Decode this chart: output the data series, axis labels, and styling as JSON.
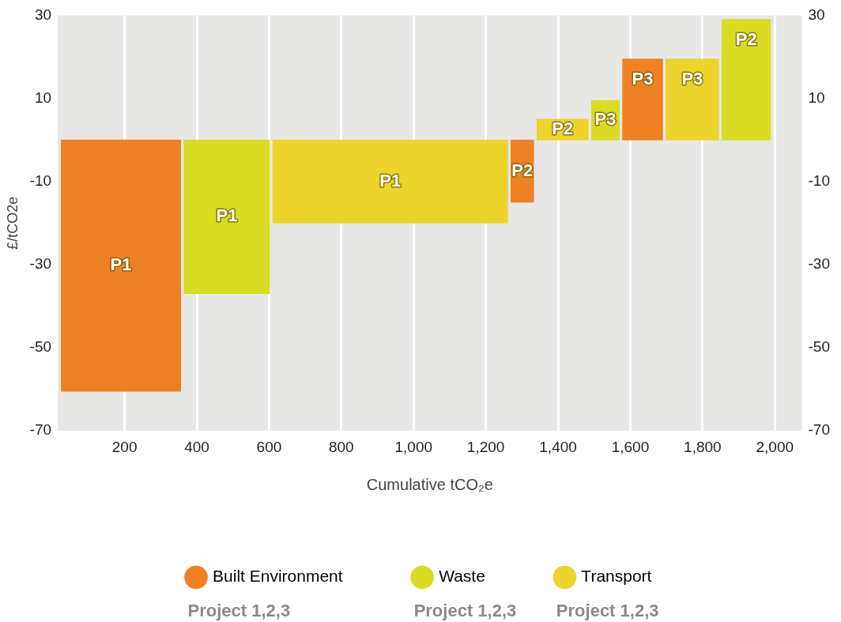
{
  "chart_data": {
    "type": "histogram",
    "xlabel": "Cumulative tCO₂e",
    "ylabel": "£/tCO2e",
    "bins": [
      20,
      360,
      606,
      1265,
      1337,
      1488,
      1574,
      1694,
      1849,
      1993
    ],
    "series": [
      {
        "name": "Built Environment",
        "color": "#ef8125",
        "values": [
          -60.5,
          null,
          null,
          -15,
          null,
          null,
          19.5,
          null,
          null
        ],
        "value_labels": [
          "P1",
          null,
          null,
          "P2",
          null,
          null,
          "P3",
          null,
          null
        ]
      },
      {
        "name": "Waste",
        "color": "#d9dc23",
        "values": [
          null,
          -37,
          null,
          null,
          null,
          9.5,
          null,
          null,
          29
        ],
        "value_labels": [
          null,
          "P1",
          null,
          null,
          null,
          "P3",
          null,
          null,
          "P2"
        ]
      },
      {
        "name": "Transport",
        "color": "#ecd42c",
        "values": [
          null,
          null,
          -20,
          null,
          5,
          null,
          null,
          19.5,
          null
        ],
        "value_labels": [
          null,
          null,
          "P1",
          null,
          "P2",
          null,
          null,
          "P3",
          null
        ]
      }
    ],
    "xlim": [
      15,
      2075
    ],
    "xticks": [
      200,
      400,
      600,
      800,
      {
        "value": 1000,
        "label": "1,000"
      },
      {
        "value": 1200,
        "label": "1,200"
      },
      {
        "value": 1400,
        "label": "1,400"
      },
      {
        "value": 1600,
        "label": "1,600"
      },
      {
        "value": 1800,
        "label": "1,800"
      },
      {
        "value": 2000,
        "label": "2,000"
      }
    ],
    "ylim": [
      -70,
      30
    ],
    "yticks": [
      -70,
      -50,
      -30,
      -10,
      10,
      30
    ],
    "y2lim": [
      -70,
      30
    ],
    "y2ticks": [
      -70,
      -50,
      -30,
      -10,
      10,
      30
    ],
    "grid": "x",
    "legend": "bottom",
    "annotations": [
      "Project 1,2,3",
      "Project 1,2,3",
      "Project 1,2,3"
    ]
  }
}
